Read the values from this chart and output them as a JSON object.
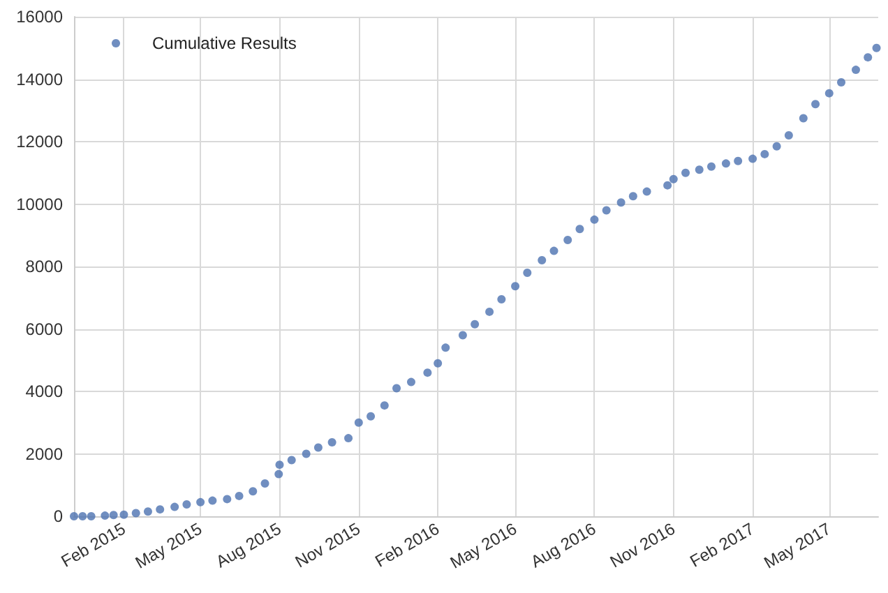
{
  "chart_data": {
    "type": "scatter",
    "marker": "circle",
    "grid": true,
    "legend": "top left",
    "xlim": [
      "2014-12-05",
      "2017-06-27"
    ],
    "xticks": [
      {
        "value": "2015-02-01",
        "label": "Feb 2015"
      },
      {
        "value": "2015-05-01",
        "label": "May 2015"
      },
      {
        "value": "2015-08-01",
        "label": "Aug 2015"
      },
      {
        "value": "2015-11-01",
        "label": "Nov 2015"
      },
      {
        "value": "2016-02-01",
        "label": "Feb 2016"
      },
      {
        "value": "2016-05-01",
        "label": "May 2016"
      },
      {
        "value": "2016-08-01",
        "label": "Aug 2016"
      },
      {
        "value": "2016-11-01",
        "label": "Nov 2016"
      },
      {
        "value": "2017-02-01",
        "label": "Feb 2017"
      },
      {
        "value": "2017-05-01",
        "label": "May 2017"
      }
    ],
    "ylim": [
      0,
      16000
    ],
    "yticks": [
      0,
      2000,
      4000,
      6000,
      8000,
      10000,
      12000,
      14000,
      16000
    ],
    "series": [
      {
        "name": "Cumulative Results",
        "color": "#4c72b0",
        "x": [
          "2014-12-05",
          "2014-12-15",
          "2014-12-25",
          "2015-01-10",
          "2015-01-20",
          "2015-02-01",
          "2015-02-15",
          "2015-03-01",
          "2015-03-15",
          "2015-04-01",
          "2015-04-15",
          "2015-05-01",
          "2015-05-15",
          "2015-06-01",
          "2015-06-15",
          "2015-07-01",
          "2015-07-15",
          "2015-07-31",
          "2015-08-01",
          "2015-08-15",
          "2015-09-01",
          "2015-09-15",
          "2015-10-01",
          "2015-10-20",
          "2015-11-01",
          "2015-11-15",
          "2015-12-01",
          "2015-12-15",
          "2016-01-01",
          "2016-01-20",
          "2016-02-01",
          "2016-02-10",
          "2016-03-01",
          "2016-03-15",
          "2016-04-01",
          "2016-04-15",
          "2016-05-01",
          "2016-05-15",
          "2016-06-01",
          "2016-06-15",
          "2016-07-01",
          "2016-07-15",
          "2016-08-01",
          "2016-08-15",
          "2016-09-01",
          "2016-09-15",
          "2016-10-01",
          "2016-10-25",
          "2016-11-01",
          "2016-11-15",
          "2016-12-01",
          "2016-12-15",
          "2017-01-01",
          "2017-01-15",
          "2017-02-01",
          "2017-02-15",
          "2017-03-01",
          "2017-03-15",
          "2017-04-01",
          "2017-04-15",
          "2017-05-01",
          "2017-05-15",
          "2017-06-01",
          "2017-06-15",
          "2017-06-25"
        ],
        "values": [
          0,
          0,
          0,
          20,
          40,
          50,
          100,
          150,
          220,
          300,
          380,
          450,
          500,
          550,
          650,
          800,
          1050,
          1350,
          1650,
          1800,
          2000,
          2200,
          2370,
          2500,
          3000,
          3200,
          3550,
          4100,
          4300,
          4600,
          4900,
          5400,
          5800,
          6150,
          6550,
          6950,
          7370,
          7800,
          8200,
          8500,
          8850,
          9200,
          9500,
          9800,
          10050,
          10250,
          10400,
          10600,
          10800,
          11000,
          11100,
          11200,
          11300,
          11380,
          11450,
          11600,
          11850,
          12200,
          12750,
          13200,
          13550,
          13900,
          14300,
          14700,
          15000
        ]
      }
    ]
  }
}
